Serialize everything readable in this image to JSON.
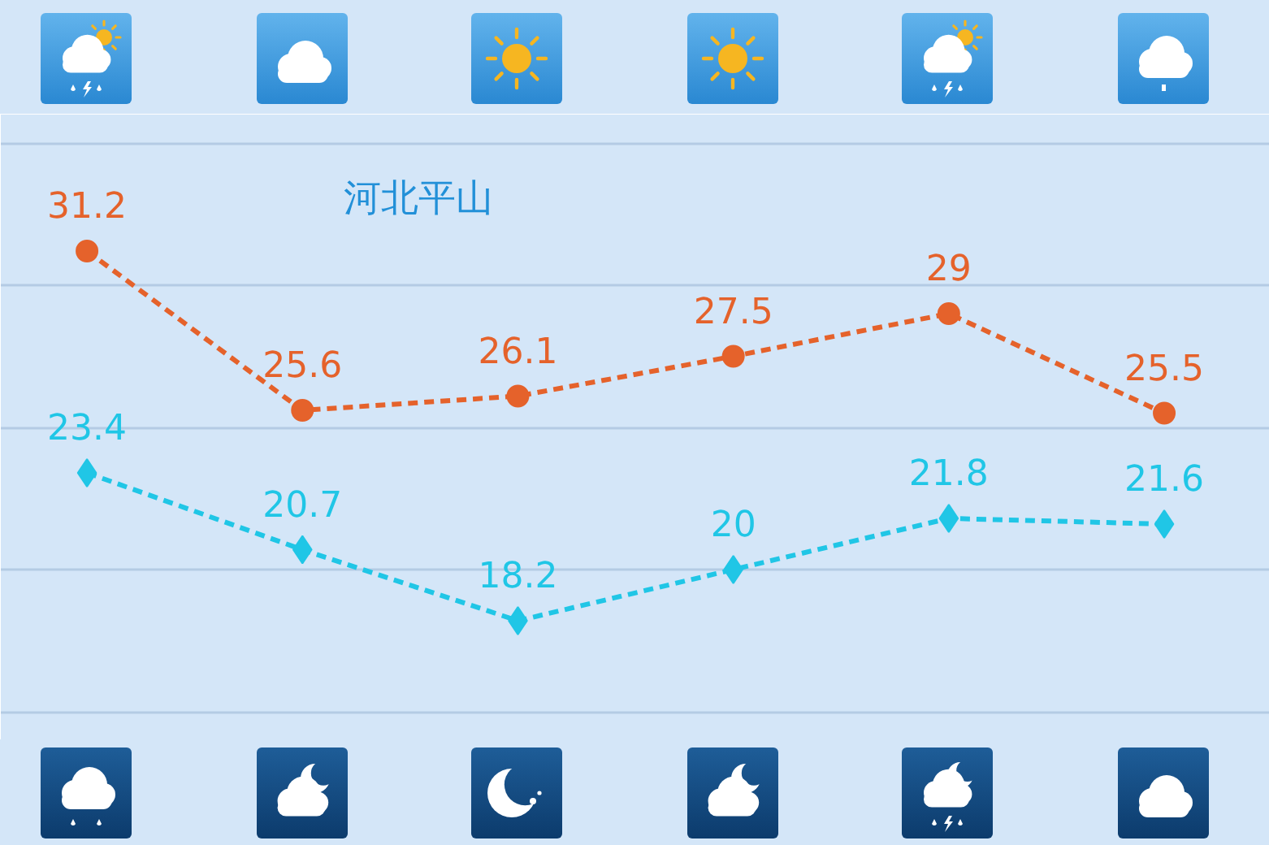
{
  "chart_data": {
    "type": "line",
    "title": "河北平山",
    "categories": [
      null,
      null,
      null,
      null,
      null,
      null
    ],
    "series": [
      {
        "color": "#e5622b",
        "marker": "circle",
        "values": [
          31.2,
          25.6,
          26.1,
          27.5,
          29,
          25.5
        ]
      },
      {
        "color": "#20c6e6",
        "marker": "diamond",
        "values": [
          23.4,
          20.7,
          18.2,
          20,
          21.8,
          21.6
        ]
      }
    ],
    "ylim": [
      14,
      36
    ],
    "yticks": [
      {
        "value": 15,
        "label": null
      },
      {
        "value": 20,
        "label": null
      },
      {
        "value": 25,
        "label": null
      },
      {
        "value": 30,
        "label": null
      },
      {
        "value": 35,
        "label": null
      }
    ],
    "grid": "y",
    "tick_labels": false,
    "data_labels": true,
    "line_style": "dashed"
  }
}
